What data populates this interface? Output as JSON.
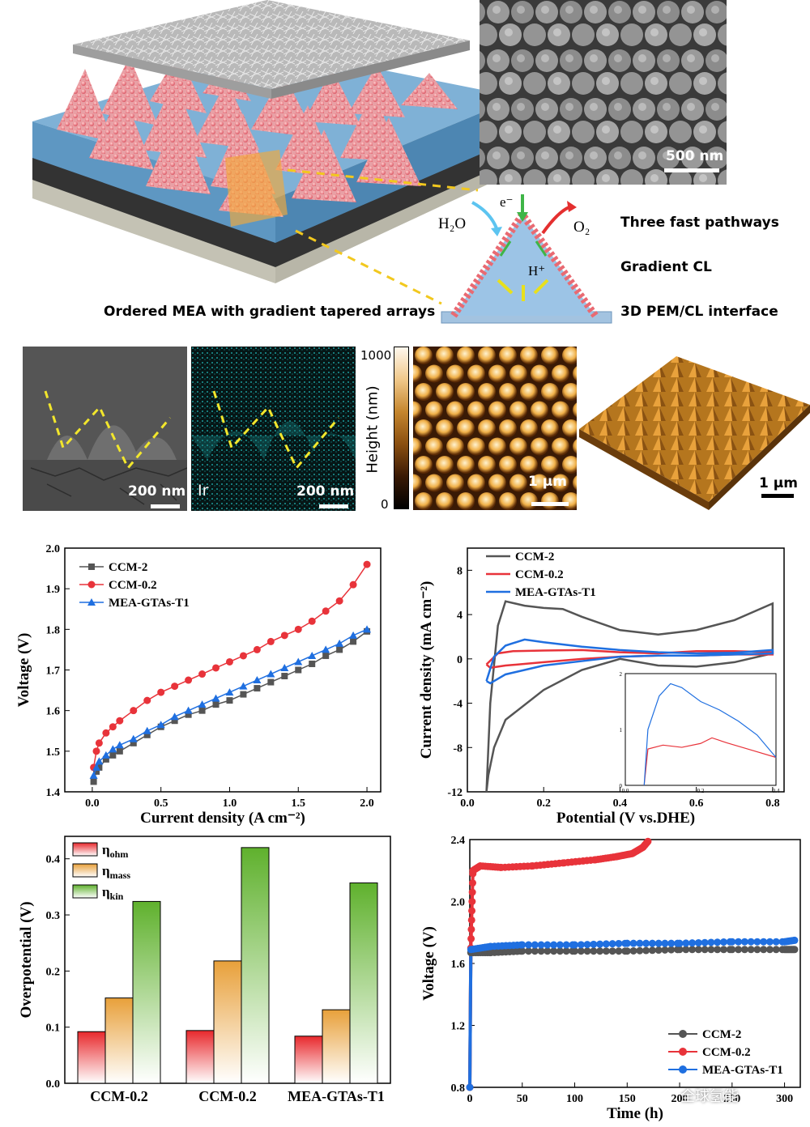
{
  "schematic": {
    "caption": "Ordered MEA with gradient tapered arrays",
    "electron": "e⁻",
    "water": "H₂O",
    "oxygen": "O₂",
    "proton": "H⁺",
    "features": [
      "Three fast pathways",
      "Gradient CL",
      "3D PEM/CL interface"
    ]
  },
  "images": {
    "sem_top_scale": "500 nm",
    "sem_cross_scale": "200 nm",
    "eds_scale": "200 nm",
    "eds_element": "Ir",
    "afm_colorbar_label": "Height (nm)",
    "afm_colorbar_max": "1000",
    "afm_colorbar_min": "0",
    "afm_2d_scale": "1 μm",
    "afm_3d_scale": "1 μm"
  },
  "watermark": "全球氢能",
  "chart_data": [
    {
      "type": "line",
      "xlabel": "Current density (A cm⁻²)",
      "ylabel": "Voltage (V)",
      "xlim": [
        -0.2,
        2.1
      ],
      "ylim": [
        1.4,
        2.0
      ],
      "xticks": [
        "0.0",
        "0.5",
        "1.0",
        "1.5",
        "2.0"
      ],
      "yticks": [
        "1.4",
        "1.5",
        "1.6",
        "1.7",
        "1.8",
        "1.9",
        "2.0"
      ],
      "legend": "top-left",
      "series": [
        {
          "name": "CCM-2",
          "color": "#555555",
          "marker": "square",
          "x": [
            0.01,
            0.03,
            0.05,
            0.1,
            0.15,
            0.2,
            0.3,
            0.4,
            0.5,
            0.6,
            0.7,
            0.8,
            0.9,
            1.0,
            1.1,
            1.2,
            1.3,
            1.4,
            1.5,
            1.6,
            1.7,
            1.8,
            1.9,
            2.0
          ],
          "y": [
            1.425,
            1.45,
            1.46,
            1.48,
            1.49,
            1.5,
            1.52,
            1.54,
            1.56,
            1.575,
            1.59,
            1.6,
            1.615,
            1.625,
            1.64,
            1.655,
            1.67,
            1.685,
            1.7,
            1.715,
            1.735,
            1.75,
            1.77,
            1.795
          ]
        },
        {
          "name": "CCM-0.2",
          "color": "#e8333a",
          "marker": "circle",
          "x": [
            0.01,
            0.03,
            0.05,
            0.1,
            0.15,
            0.2,
            0.3,
            0.4,
            0.5,
            0.6,
            0.7,
            0.8,
            0.9,
            1.0,
            1.1,
            1.2,
            1.3,
            1.4,
            1.5,
            1.6,
            1.7,
            1.8,
            1.9,
            2.0
          ],
          "y": [
            1.46,
            1.5,
            1.52,
            1.545,
            1.56,
            1.575,
            1.6,
            1.625,
            1.645,
            1.66,
            1.675,
            1.69,
            1.705,
            1.72,
            1.735,
            1.75,
            1.77,
            1.785,
            1.8,
            1.82,
            1.845,
            1.87,
            1.91,
            1.96
          ]
        },
        {
          "name": "MEA-GTAs-T1",
          "color": "#1f6fe0",
          "marker": "triangle",
          "x": [
            0.01,
            0.03,
            0.05,
            0.1,
            0.15,
            0.2,
            0.3,
            0.4,
            0.5,
            0.6,
            0.7,
            0.8,
            0.9,
            1.0,
            1.1,
            1.2,
            1.3,
            1.4,
            1.5,
            1.6,
            1.7,
            1.8,
            1.9,
            2.0
          ],
          "y": [
            1.44,
            1.46,
            1.475,
            1.49,
            1.505,
            1.515,
            1.53,
            1.55,
            1.565,
            1.585,
            1.6,
            1.615,
            1.63,
            1.645,
            1.66,
            1.675,
            1.69,
            1.705,
            1.72,
            1.735,
            1.75,
            1.765,
            1.785,
            1.8
          ]
        }
      ]
    },
    {
      "type": "line",
      "xlabel": "Potential (V vs.DHE)",
      "ylabel": "Current density (mA cm⁻²)",
      "xlim": [
        0.0,
        0.83
      ],
      "ylim": [
        -12,
        10
      ],
      "xticks": [
        "0.0",
        "0.2",
        "0.4",
        "0.6",
        "0.8"
      ],
      "yticks": [
        "-12",
        "-8",
        "-4",
        "0",
        "4",
        "8"
      ],
      "legend": "top-left",
      "inset": {
        "xlim": [
          0.0,
          0.4
        ],
        "ylim": [
          0,
          2
        ],
        "xticks": [
          "0.0",
          "0.2",
          "0.4"
        ],
        "yticks": [
          "0",
          "1",
          "2"
        ]
      },
      "series": [
        {
          "name": "CCM-2",
          "color": "#555555",
          "x": [
            0.05,
            0.06,
            0.08,
            0.1,
            0.15,
            0.2,
            0.25,
            0.3,
            0.4,
            0.5,
            0.6,
            0.7,
            0.8,
            0.8,
            0.7,
            0.6,
            0.5,
            0.4,
            0.3,
            0.2,
            0.1,
            0.07,
            0.055,
            0.05
          ],
          "y": [
            -12,
            -4,
            3,
            5.2,
            4.8,
            4.6,
            4.5,
            3.8,
            2.6,
            2.2,
            2.6,
            3.5,
            5.0,
            0.5,
            -0.3,
            -0.7,
            -0.6,
            0.0,
            -1.0,
            -2.8,
            -5.5,
            -8,
            -10.5,
            -12
          ]
        },
        {
          "name": "CCM-0.2",
          "color": "#e8333a",
          "x": [
            0.05,
            0.08,
            0.12,
            0.2,
            0.3,
            0.4,
            0.5,
            0.6,
            0.7,
            0.8,
            0.8,
            0.7,
            0.6,
            0.5,
            0.4,
            0.3,
            0.2,
            0.1,
            0.06,
            0.05
          ],
          "y": [
            -0.5,
            0.5,
            0.7,
            0.75,
            0.8,
            0.6,
            0.5,
            0.7,
            0.7,
            0.6,
            0.4,
            0.4,
            0.3,
            0.3,
            0.2,
            0.0,
            -0.3,
            -0.6,
            -0.8,
            -0.5
          ]
        },
        {
          "name": "MEA-GTAs-T1",
          "color": "#1f6fe0",
          "x": [
            0.05,
            0.07,
            0.1,
            0.15,
            0.2,
            0.3,
            0.4,
            0.5,
            0.6,
            0.7,
            0.8,
            0.8,
            0.7,
            0.6,
            0.5,
            0.4,
            0.3,
            0.2,
            0.1,
            0.06,
            0.05
          ],
          "y": [
            -2.0,
            0.2,
            1.2,
            1.75,
            1.5,
            1.1,
            0.8,
            0.6,
            0.5,
            0.55,
            0.8,
            0.5,
            0.4,
            0.3,
            0.3,
            0.2,
            -0.2,
            -0.6,
            -1.4,
            -2.2,
            -2.0
          ]
        }
      ]
    },
    {
      "type": "bar",
      "ylabel": "Overpotential (V)",
      "categories": [
        "CCM-0.2",
        "CCM-0.2",
        "MEA-GTAs-T1"
      ],
      "ylim": [
        0,
        0.44
      ],
      "yticks": [
        "0.0",
        "0.1",
        "0.2",
        "0.3",
        "0.4"
      ],
      "legend": "top-left",
      "series": [
        {
          "name": "η_ohm",
          "label_main": "η",
          "label_sub": "ohm",
          "color": "#e8282c",
          "values": [
            0.092,
            0.094,
            0.084
          ]
        },
        {
          "name": "η_mass",
          "label_main": "η",
          "label_sub": "mass",
          "color": "#e8a03a",
          "values": [
            0.152,
            0.218,
            0.131
          ]
        },
        {
          "name": "η_kin",
          "label_main": "η",
          "label_sub": "kin",
          "color": "#5fb12d",
          "values": [
            0.324,
            0.42,
            0.357
          ]
        }
      ]
    },
    {
      "type": "line",
      "xlabel": "Time (h)",
      "ylabel": "Voltage (V)",
      "xlim": [
        0,
        315
      ],
      "ylim": [
        0.8,
        2.4
      ],
      "xticks": [
        "0",
        "50",
        "100",
        "150",
        "200",
        "250",
        "300"
      ],
      "yticks": [
        "0.8",
        "1.2",
        "1.6",
        "2.0",
        "2.4"
      ],
      "legend": "bottom-right",
      "series": [
        {
          "name": "CCM-2",
          "color": "#555555",
          "x": [
            0,
            1,
            20,
            50,
            100,
            150,
            200,
            250,
            300,
            310
          ],
          "y": [
            0.8,
            1.67,
            1.67,
            1.68,
            1.68,
            1.68,
            1.69,
            1.69,
            1.69,
            1.69
          ]
        },
        {
          "name": "CCM-0.2",
          "color": "#e8333a",
          "x": [
            0,
            1,
            3,
            10,
            30,
            60,
            90,
            120,
            140,
            155,
            165,
            170
          ],
          "y": [
            0.8,
            1.7,
            2.2,
            2.23,
            2.22,
            2.23,
            2.25,
            2.27,
            2.29,
            2.31,
            2.35,
            2.39
          ]
        },
        {
          "name": "MEA-GTAs-T1",
          "color": "#1f6fe0",
          "x": [
            0,
            1,
            20,
            50,
            100,
            150,
            200,
            250,
            300,
            310
          ],
          "y": [
            0.8,
            1.69,
            1.71,
            1.72,
            1.72,
            1.73,
            1.73,
            1.74,
            1.74,
            1.75
          ]
        }
      ]
    }
  ]
}
